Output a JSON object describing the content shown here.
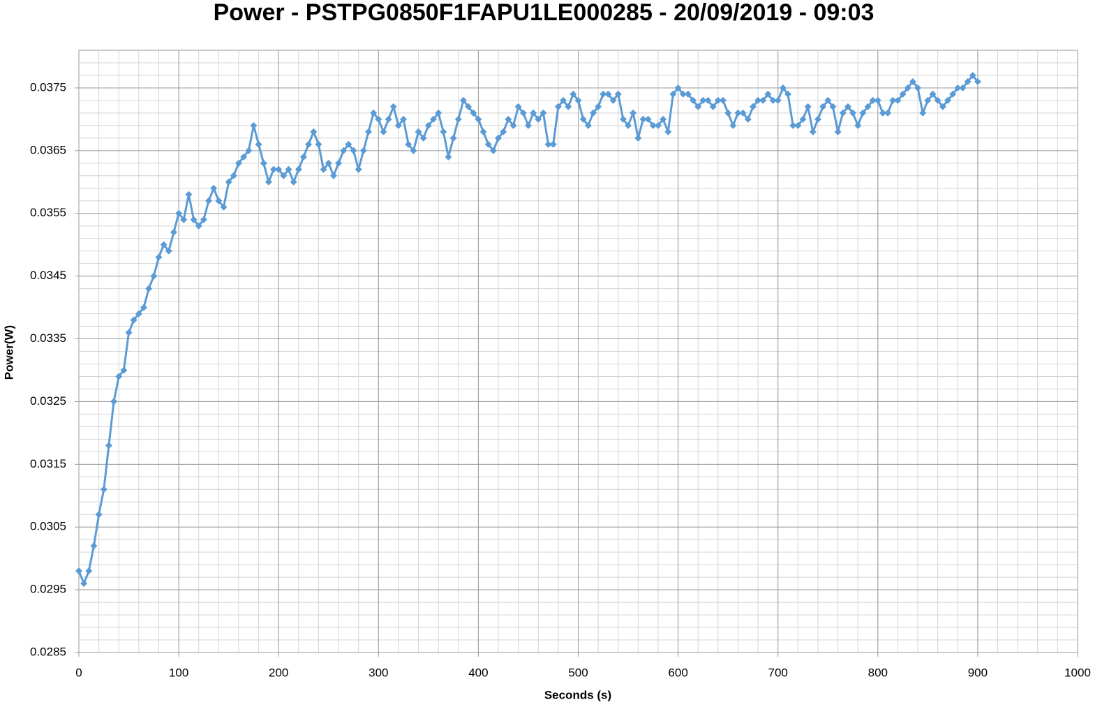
{
  "chart_data": {
    "type": "line",
    "title": "Power - PSTPG0850F1FAPU1LE000285 - 20/09/2019 - 09:03",
    "x_label": "Seconds (s)",
    "y_label": "Power(W)",
    "color": "#5b9bd5",
    "marker": "diamond",
    "grid": true,
    "minor_grid": true,
    "xlim": [
      0,
      1000
    ],
    "xticks": [
      0,
      100,
      200,
      300,
      400,
      500,
      600,
      700,
      800,
      900,
      1000
    ],
    "ylim": [
      0.0285,
      0.0381
    ],
    "yticks": [
      0.0285,
      0.0295,
      0.0305,
      0.0315,
      0.0325,
      0.0335,
      0.0345,
      0.0355,
      0.0365,
      0.0375
    ],
    "x": [
      0,
      5,
      10,
      15,
      20,
      25,
      30,
      35,
      40,
      45,
      50,
      55,
      60,
      65,
      70,
      75,
      80,
      85,
      90,
      95,
      100,
      105,
      110,
      115,
      120,
      125,
      130,
      135,
      140,
      145,
      150,
      155,
      160,
      165,
      170,
      175,
      180,
      185,
      190,
      195,
      200,
      205,
      210,
      215,
      220,
      225,
      230,
      235,
      240,
      245,
      250,
      255,
      260,
      265,
      270,
      275,
      280,
      285,
      290,
      295,
      300,
      305,
      310,
      315,
      320,
      325,
      330,
      335,
      340,
      345,
      350,
      355,
      360,
      365,
      370,
      375,
      380,
      385,
      390,
      395,
      400,
      405,
      410,
      415,
      420,
      425,
      430,
      435,
      440,
      445,
      450,
      455,
      460,
      465,
      470,
      475,
      480,
      485,
      490,
      495,
      500,
      505,
      510,
      515,
      520,
      525,
      530,
      535,
      540,
      545,
      550,
      555,
      560,
      565,
      570,
      575,
      580,
      585,
      590,
      595,
      600,
      605,
      610,
      615,
      620,
      625,
      630,
      635,
      640,
      645,
      650,
      655,
      660,
      665,
      670,
      675,
      680,
      685,
      690,
      695,
      700,
      705,
      710,
      715,
      720,
      725,
      730,
      735,
      740,
      745,
      750,
      755,
      760,
      765,
      770,
      775,
      780,
      785,
      790,
      795,
      800,
      805,
      810,
      815,
      820,
      825,
      830,
      835,
      840,
      845,
      850,
      855,
      860,
      865,
      870,
      875,
      880,
      885,
      890,
      895,
      900
    ],
    "values": [
      0.0298,
      0.0296,
      0.0298,
      0.0302,
      0.0307,
      0.0311,
      0.0318,
      0.0325,
      0.0329,
      0.033,
      0.0336,
      0.0338,
      0.0339,
      0.034,
      0.0343,
      0.0345,
      0.0348,
      0.035,
      0.0349,
      0.0352,
      0.0355,
      0.0354,
      0.0358,
      0.0354,
      0.0353,
      0.0354,
      0.0357,
      0.0359,
      0.0357,
      0.0356,
      0.036,
      0.0361,
      0.0363,
      0.0364,
      0.0365,
      0.0369,
      0.0366,
      0.0363,
      0.036,
      0.0362,
      0.0362,
      0.0361,
      0.0362,
      0.036,
      0.0362,
      0.0364,
      0.0366,
      0.0368,
      0.0366,
      0.0362,
      0.0363,
      0.0361,
      0.0363,
      0.0365,
      0.0366,
      0.0365,
      0.0362,
      0.0365,
      0.0368,
      0.0371,
      0.037,
      0.0368,
      0.037,
      0.0372,
      0.0369,
      0.037,
      0.0366,
      0.0365,
      0.0368,
      0.0367,
      0.0369,
      0.037,
      0.0371,
      0.0368,
      0.0364,
      0.0367,
      0.037,
      0.0373,
      0.0372,
      0.0371,
      0.037,
      0.0368,
      0.0366,
      0.0365,
      0.0367,
      0.0368,
      0.037,
      0.0369,
      0.0372,
      0.0371,
      0.0369,
      0.0371,
      0.037,
      0.0371,
      0.0366,
      0.0366,
      0.0372,
      0.0373,
      0.0372,
      0.0374,
      0.0373,
      0.037,
      0.0369,
      0.0371,
      0.0372,
      0.0374,
      0.0374,
      0.0373,
      0.0374,
      0.037,
      0.0369,
      0.0371,
      0.0367,
      0.037,
      0.037,
      0.0369,
      0.0369,
      0.037,
      0.0368,
      0.0374,
      0.0375,
      0.0374,
      0.0374,
      0.0373,
      0.0372,
      0.0373,
      0.0373,
      0.0372,
      0.0373,
      0.0373,
      0.0371,
      0.0369,
      0.0371,
      0.0371,
      0.037,
      0.0372,
      0.0373,
      0.0373,
      0.0374,
      0.0373,
      0.0373,
      0.0375,
      0.0374,
      0.0369,
      0.0369,
      0.037,
      0.0372,
      0.0368,
      0.037,
      0.0372,
      0.0373,
      0.0372,
      0.0368,
      0.0371,
      0.0372,
      0.0371,
      0.0369,
      0.0371,
      0.0372,
      0.0373,
      0.0373,
      0.0371,
      0.0371,
      0.0373,
      0.0373,
      0.0374,
      0.0375,
      0.0376,
      0.0375,
      0.0371,
      0.0373,
      0.0374,
      0.0373,
      0.0372,
      0.0373,
      0.0374,
      0.0375,
      0.0375,
      0.0376,
      0.0377,
      0.0376
    ]
  }
}
